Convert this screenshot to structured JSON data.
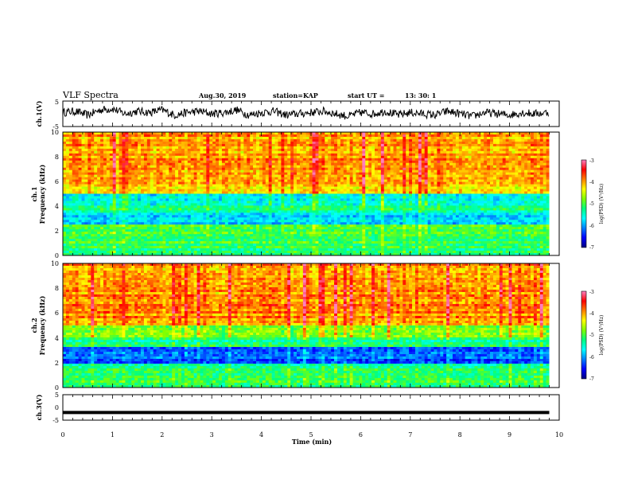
{
  "header": {
    "title": "VLF Spectra",
    "date": "Aug.30, 2019",
    "station": "station=KAP",
    "start_label": "start  UT  =",
    "start_time": "13: 30: 1"
  },
  "chart_data": [
    {
      "type": "line",
      "ylabel": "ch.1(V)",
      "ylim": [
        -5,
        5
      ],
      "xlim": [
        0,
        10
      ],
      "y_ticks": [
        "5",
        "-5"
      ],
      "description_series": "black waveform fluctuating between about -2 and +3 V over 0-9.8 min",
      "x": [
        0,
        0.25,
        0.5,
        0.75,
        1.0,
        1.25,
        1.5,
        1.75,
        2.0,
        2.25,
        2.5,
        2.75,
        3.0,
        3.25,
        3.5,
        3.75,
        4.0,
        4.25,
        4.5,
        4.75,
        5.0,
        5.25,
        5.5,
        5.75,
        6.0,
        6.25,
        6.5,
        6.75,
        7.0,
        7.25,
        7.5,
        7.75,
        8.0,
        8.25,
        8.5,
        8.75,
        9.0,
        9.25,
        9.5,
        9.8
      ],
      "y": [
        0.5,
        1.0,
        -0.5,
        1.5,
        2.0,
        0.0,
        1.0,
        0.5,
        1.5,
        -0.5,
        0.5,
        1.0,
        0.0,
        0.5,
        1.5,
        -0.5,
        0.5,
        1.0,
        -0.5,
        0.0,
        0.5,
        1.0,
        0.0,
        -1.0,
        0.5,
        0.0,
        1.0,
        -0.5,
        0.5,
        0.0,
        -0.5,
        1.0,
        0.0,
        -1.0,
        0.5,
        0.0,
        -0.5,
        0.5,
        0.0,
        0.5
      ]
    },
    {
      "type": "heatmap",
      "ylabel_top": "ch.1",
      "ylabel": "Frequency  (kHz)",
      "ylim": [
        0,
        10
      ],
      "xlim": [
        0,
        10
      ],
      "y_ticks": [
        "0",
        "2",
        "4",
        "6",
        "8",
        "10"
      ],
      "colorbar": {
        "label": "log(PSD) (V²/Hz)",
        "range": [
          -7,
          -3
        ],
        "ticks": [
          "-3",
          "-4",
          "-5",
          "-6",
          "-7"
        ]
      },
      "bands_khz": [
        {
          "range": [
            0,
            1.0
          ],
          "level": -5.2
        },
        {
          "range": [
            1.0,
            2.5
          ],
          "level": -5.0
        },
        {
          "range": [
            2.5,
            3.5
          ],
          "level": -5.8
        },
        {
          "range": [
            3.5,
            4.0
          ],
          "level": -5.3
        },
        {
          "range": [
            4.0,
            5.0
          ],
          "level": -5.6
        },
        {
          "range": [
            5.0,
            5.5
          ],
          "level": -4.4
        },
        {
          "range": [
            5.5,
            10.0
          ],
          "level": -4.0
        }
      ]
    },
    {
      "type": "heatmap",
      "ylabel_top": "ch.2",
      "ylabel": "Frequency  (kHz)",
      "ylim": [
        0,
        10
      ],
      "xlim": [
        0,
        10
      ],
      "y_ticks": [
        "0",
        "2",
        "4",
        "6",
        "8",
        "10"
      ],
      "colorbar": {
        "label": "log(PSD) (V²/Hz)",
        "range": [
          -7,
          -3
        ],
        "ticks": [
          "-3",
          "-4",
          "-5",
          "-6",
          "-7"
        ]
      },
      "bands_khz": [
        {
          "range": [
            0,
            1.0
          ],
          "level": -5.2
        },
        {
          "range": [
            1.0,
            2.0
          ],
          "level": -5.3
        },
        {
          "range": [
            2.0,
            3.3
          ],
          "level": -6.3
        },
        {
          "range": [
            3.3,
            4.0
          ],
          "level": -5.3
        },
        {
          "range": [
            4.0,
            5.0
          ],
          "level": -4.8
        },
        {
          "range": [
            5.0,
            10.0
          ],
          "level": -4.0
        }
      ]
    },
    {
      "type": "line",
      "ylabel": "ch.3(V)",
      "ylim": [
        -5,
        5
      ],
      "xlim": [
        0,
        10
      ],
      "y_ticks": [
        "5",
        "0",
        "-5"
      ],
      "x": [
        0,
        9.8
      ],
      "y": [
        -2,
        -2
      ]
    }
  ],
  "x_axis": {
    "label": "Time  (min)",
    "ticks": [
      "0",
      "1",
      "2",
      "3",
      "4",
      "5",
      "6",
      "7",
      "8",
      "9",
      "10"
    ]
  },
  "colors": {
    "colormap": [
      "#000080",
      "#0000ff",
      "#0080ff",
      "#00ffff",
      "#00ff80",
      "#80ff00",
      "#ffff00",
      "#ff8000",
      "#ff0000",
      "#ff80c0",
      "#ffffff"
    ]
  }
}
